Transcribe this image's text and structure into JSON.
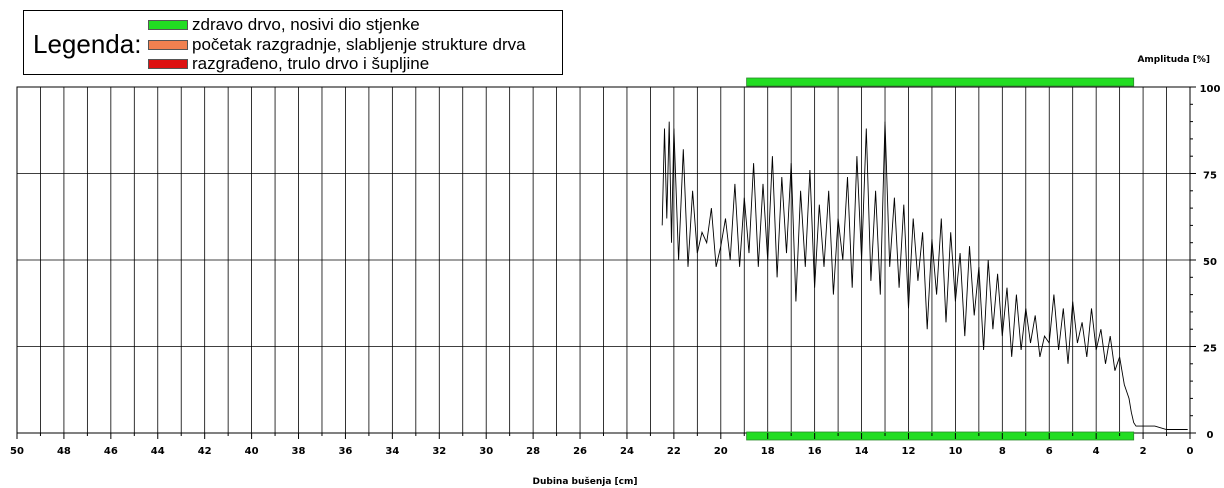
{
  "legend": {
    "title": "Legenda:",
    "items": [
      {
        "label": "zdravo drvo, nosivi dio stjenke",
        "color": "#22dd22"
      },
      {
        "label": "početak razgradnje, slabljenje strukture drva",
        "color": "#f08050"
      },
      {
        "label": "razgrađeno, trulo drvo i šupljine",
        "color": "#dd1111"
      }
    ]
  },
  "chart_data": {
    "type": "line",
    "xlabel": "Dubina bušenja [cm]",
    "ylabel": "Amplituda [%]",
    "xlim": [
      50,
      0
    ],
    "ylim": [
      0,
      100
    ],
    "x_ticks": [
      50,
      48,
      46,
      44,
      42,
      40,
      38,
      36,
      34,
      32,
      30,
      28,
      26,
      24,
      22,
      20,
      18,
      16,
      14,
      12,
      10,
      8,
      6,
      4,
      2,
      0
    ],
    "y_ticks": [
      0,
      25,
      50,
      75,
      100
    ],
    "grid": true,
    "zones": [
      {
        "from": 18.9,
        "to": 2.4,
        "color": "#22dd22",
        "position": "top"
      },
      {
        "from": 18.9,
        "to": 2.4,
        "color": "#22dd22",
        "position": "bottom"
      }
    ],
    "series": [
      {
        "color": "#000000",
        "x": [
          22.5,
          22.4,
          22.3,
          22.2,
          22.1,
          22.0,
          21.8,
          21.6,
          21.4,
          21.2,
          21.0,
          20.8,
          20.6,
          20.4,
          20.2,
          20.0,
          19.8,
          19.6,
          19.4,
          19.2,
          19.0,
          18.8,
          18.6,
          18.4,
          18.2,
          18.0,
          17.8,
          17.6,
          17.4,
          17.2,
          17.0,
          16.8,
          16.6,
          16.4,
          16.2,
          16.0,
          15.8,
          15.6,
          15.4,
          15.2,
          15.0,
          14.8,
          14.6,
          14.4,
          14.2,
          14.0,
          13.8,
          13.6,
          13.4,
          13.2,
          13.0,
          12.8,
          12.6,
          12.4,
          12.2,
          12.0,
          11.8,
          11.6,
          11.4,
          11.2,
          11.0,
          10.8,
          10.6,
          10.4,
          10.2,
          10.0,
          9.8,
          9.6,
          9.4,
          9.2,
          9.0,
          8.8,
          8.6,
          8.4,
          8.2,
          8.0,
          7.8,
          7.6,
          7.4,
          7.2,
          7.0,
          6.8,
          6.6,
          6.4,
          6.2,
          6.0,
          5.8,
          5.6,
          5.4,
          5.2,
          5.0,
          4.8,
          4.6,
          4.4,
          4.2,
          4.0,
          3.8,
          3.6,
          3.4,
          3.2,
          3.0,
          2.8,
          2.6,
          2.5,
          2.4,
          2.3,
          2.2,
          2.0,
          1.5,
          1.0,
          0.5,
          0.1
        ],
        "values": [
          60,
          88,
          62,
          90,
          55,
          88,
          50,
          82,
          48,
          70,
          52,
          58,
          55,
          65,
          48,
          54,
          62,
          50,
          72,
          48,
          68,
          52,
          78,
          48,
          72,
          50,
          80,
          45,
          74,
          52,
          78,
          38,
          70,
          48,
          76,
          42,
          66,
          48,
          70,
          40,
          62,
          50,
          74,
          42,
          80,
          50,
          88,
          44,
          70,
          40,
          90,
          48,
          68,
          42,
          66,
          36,
          62,
          44,
          58,
          30,
          56,
          40,
          62,
          32,
          58,
          38,
          52,
          28,
          54,
          34,
          48,
          24,
          50,
          30,
          46,
          28,
          42,
          22,
          40,
          24,
          36,
          26,
          34,
          22,
          28,
          26,
          40,
          24,
          36,
          20,
          38,
          26,
          32,
          22,
          36,
          24,
          30,
          20,
          28,
          18,
          22,
          14,
          10,
          6,
          3,
          2,
          2,
          2,
          2,
          1,
          1,
          1
        ]
      }
    ]
  }
}
